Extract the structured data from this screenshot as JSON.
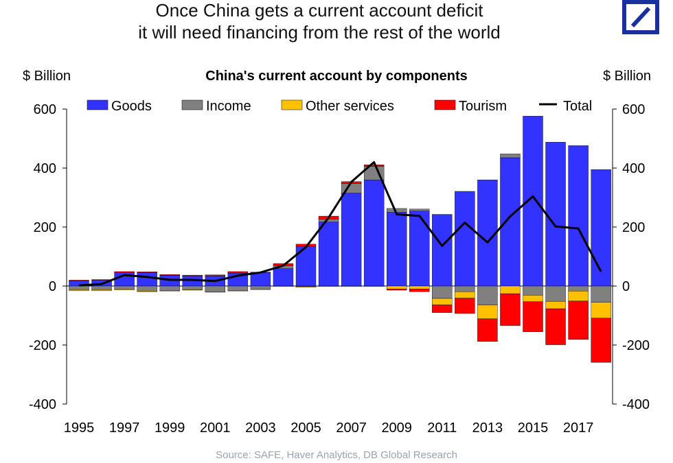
{
  "headline": {
    "line1": "Once China gets a current account deficit",
    "line2": "it will need financing from the rest of the world"
  },
  "logo": {
    "name": "deutsche-bank-logo",
    "color": "#1a2fa0"
  },
  "source": "Source: SAFE, Haver Analytics, DB Global Research",
  "chart_data": {
    "type": "bar",
    "stacked": true,
    "title": "China's current account by components",
    "ylabel_left": "$ Billion",
    "ylabel_right": "$ Billion",
    "ylim": [
      -400,
      600
    ],
    "yticks": [
      600,
      400,
      200,
      0,
      -200,
      -400
    ],
    "xtick_labels": [
      "1995",
      "1997",
      "1999",
      "2001",
      "2003",
      "2005",
      "2007",
      "2009",
      "2011",
      "2013",
      "2015",
      "2017"
    ],
    "categories": [
      "1995",
      "1996",
      "1997",
      "1998",
      "1999",
      "2000",
      "2001",
      "2002",
      "2003",
      "2004",
      "2005",
      "2006",
      "2007",
      "2008",
      "2009",
      "2010",
      "2011",
      "2012",
      "2013",
      "2014",
      "2015",
      "2016",
      "2017",
      "2018"
    ],
    "series": [
      {
        "name": "Goods",
        "color": "#3333ff",
        "values": [
          18,
          20,
          46,
          46,
          36,
          34,
          34,
          44,
          45,
          59,
          134,
          217,
          315,
          360,
          250,
          254,
          243,
          321,
          360,
          435,
          576,
          488,
          476,
          395
        ]
      },
      {
        "name": "Income",
        "color": "#808080",
        "values": [
          -12,
          -12,
          -10,
          -17,
          -15,
          -12,
          -19,
          -15,
          -10,
          10,
          -2,
          10,
          32,
          46,
          13,
          7,
          -42,
          -19,
          -64,
          13,
          -31,
          -52,
          -17,
          -55
        ]
      },
      {
        "name": "Other services",
        "color": "#ffc000",
        "values": [
          -4,
          -4,
          -3,
          -2,
          -2,
          -2,
          -2,
          -2,
          -2,
          -2,
          -2,
          -2,
          -2,
          -2,
          -10,
          -10,
          -22,
          -22,
          -47,
          -26,
          -22,
          -25,
          -34,
          -54
        ]
      },
      {
        "name": "Tourism",
        "color": "#ff0000",
        "values": [
          2,
          2,
          3,
          2,
          3,
          3,
          4,
          5,
          2,
          7,
          8,
          10,
          7,
          5,
          -4,
          -9,
          -26,
          -52,
          -77,
          -108,
          -102,
          -122,
          -130,
          -150
        ]
      },
      {
        "name": "Total",
        "color": "#000000",
        "type": "line",
        "values": [
          2,
          7,
          37,
          31,
          21,
          21,
          17,
          35,
          46,
          69,
          132,
          232,
          353,
          420,
          243,
          238,
          136,
          215,
          148,
          236,
          304,
          202,
          195,
          49
        ]
      }
    ],
    "legend_position": "top"
  }
}
